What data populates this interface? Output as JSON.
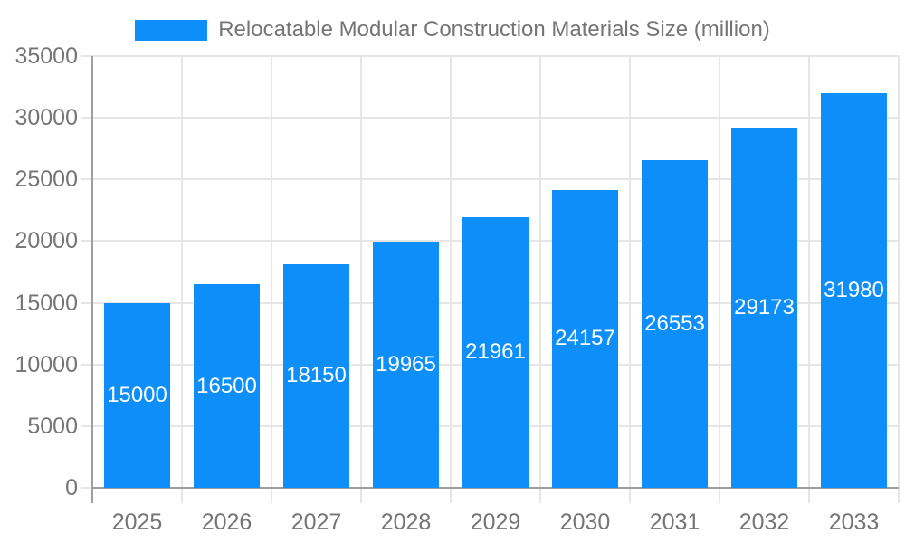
{
  "legend": {
    "label": "Relocatable Modular Construction Materials Size (million)"
  },
  "chart_data": {
    "type": "bar",
    "title": "Relocatable Modular Construction Materials Size (million)",
    "categories": [
      "2025",
      "2026",
      "2027",
      "2028",
      "2029",
      "2030",
      "2031",
      "2032",
      "2033"
    ],
    "values": [
      15000,
      16500,
      18150,
      19965,
      21961,
      24157,
      26553,
      29173,
      31980
    ],
    "value_labels": [
      "15000",
      "16500",
      "18150",
      "19965",
      "21961",
      "24157",
      "26553",
      "29173",
      "31980"
    ],
    "ytick_labels": [
      "0",
      "5000",
      "10000",
      "15000",
      "20000",
      "25000",
      "30000",
      "35000"
    ],
    "xlabel": "",
    "ylabel": "",
    "ylim": [
      0,
      35000
    ],
    "ytick_step": 5000,
    "grid": true,
    "legend_position": "top",
    "colors": {
      "bar": "#0d8ef9",
      "grid": "#e6e6e6",
      "axis_line": "#9e9e9e",
      "axis_text": "#757575",
      "value_label_text": "#ffffff",
      "background": "#ffffff"
    }
  }
}
